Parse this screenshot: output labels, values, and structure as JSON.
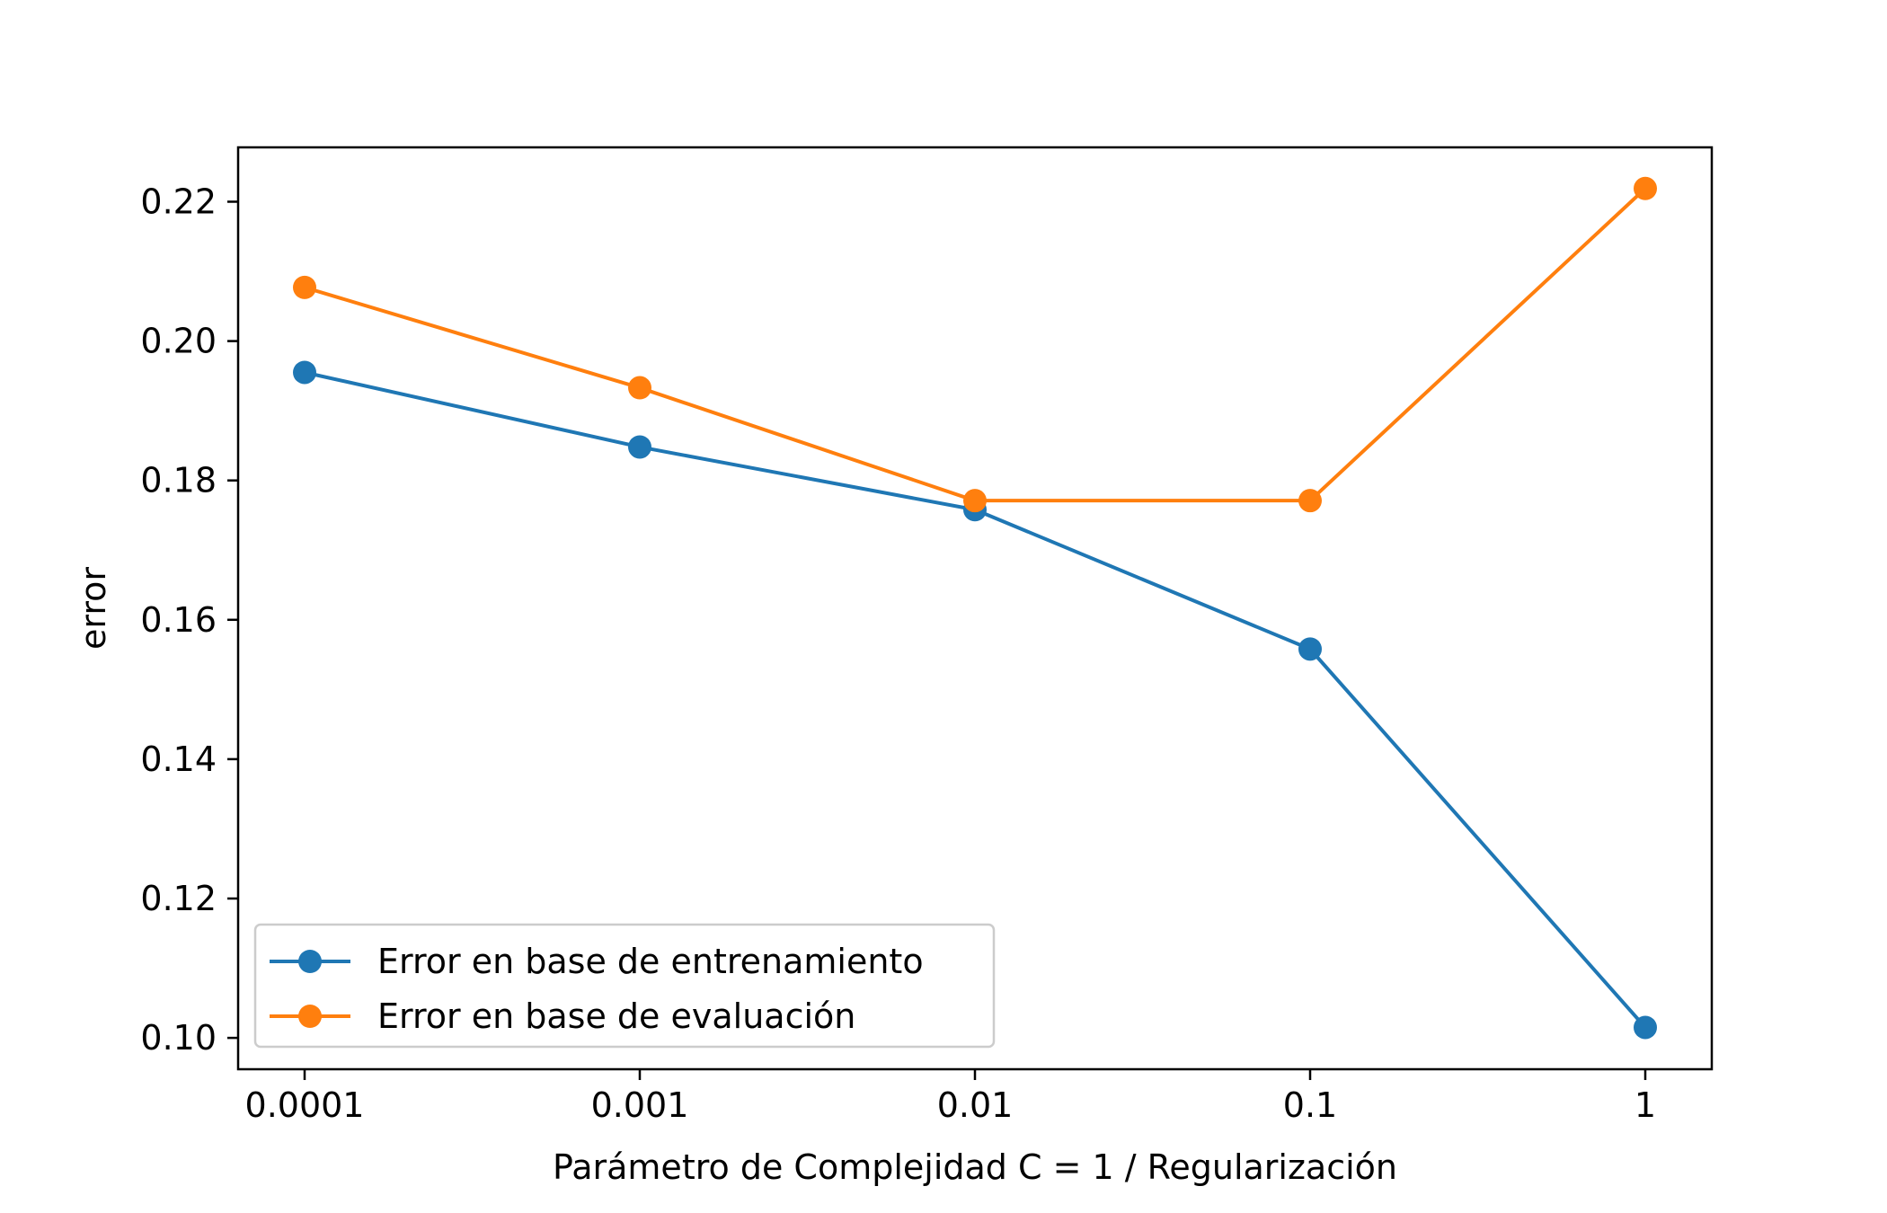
{
  "chart_data": {
    "type": "line",
    "categories": [
      "0.0001",
      "0.001",
      "0.01",
      "0.1",
      "1"
    ],
    "xlabel": "Parámetro de Complejidad C  = 1 / Regularización",
    "ylabel": "error",
    "ylim": [
      0.0955,
      0.2278
    ],
    "yticks": [
      "0.10",
      "0.12",
      "0.14",
      "0.16",
      "0.18",
      "0.20",
      "0.22"
    ],
    "grid": false,
    "legend_position": "lower-left",
    "series": [
      {
        "name": "Error en base de entrenamiento",
        "color": "#1f77b4",
        "marker": "circle",
        "values": [
          0.1955,
          0.1848,
          0.1758,
          0.1558,
          0.1015
        ]
      },
      {
        "name": "Error en base de evaluación",
        "color": "#ff7f0e",
        "marker": "circle",
        "values": [
          0.2077,
          0.1933,
          0.1771,
          0.1771,
          0.2219
        ]
      }
    ]
  }
}
